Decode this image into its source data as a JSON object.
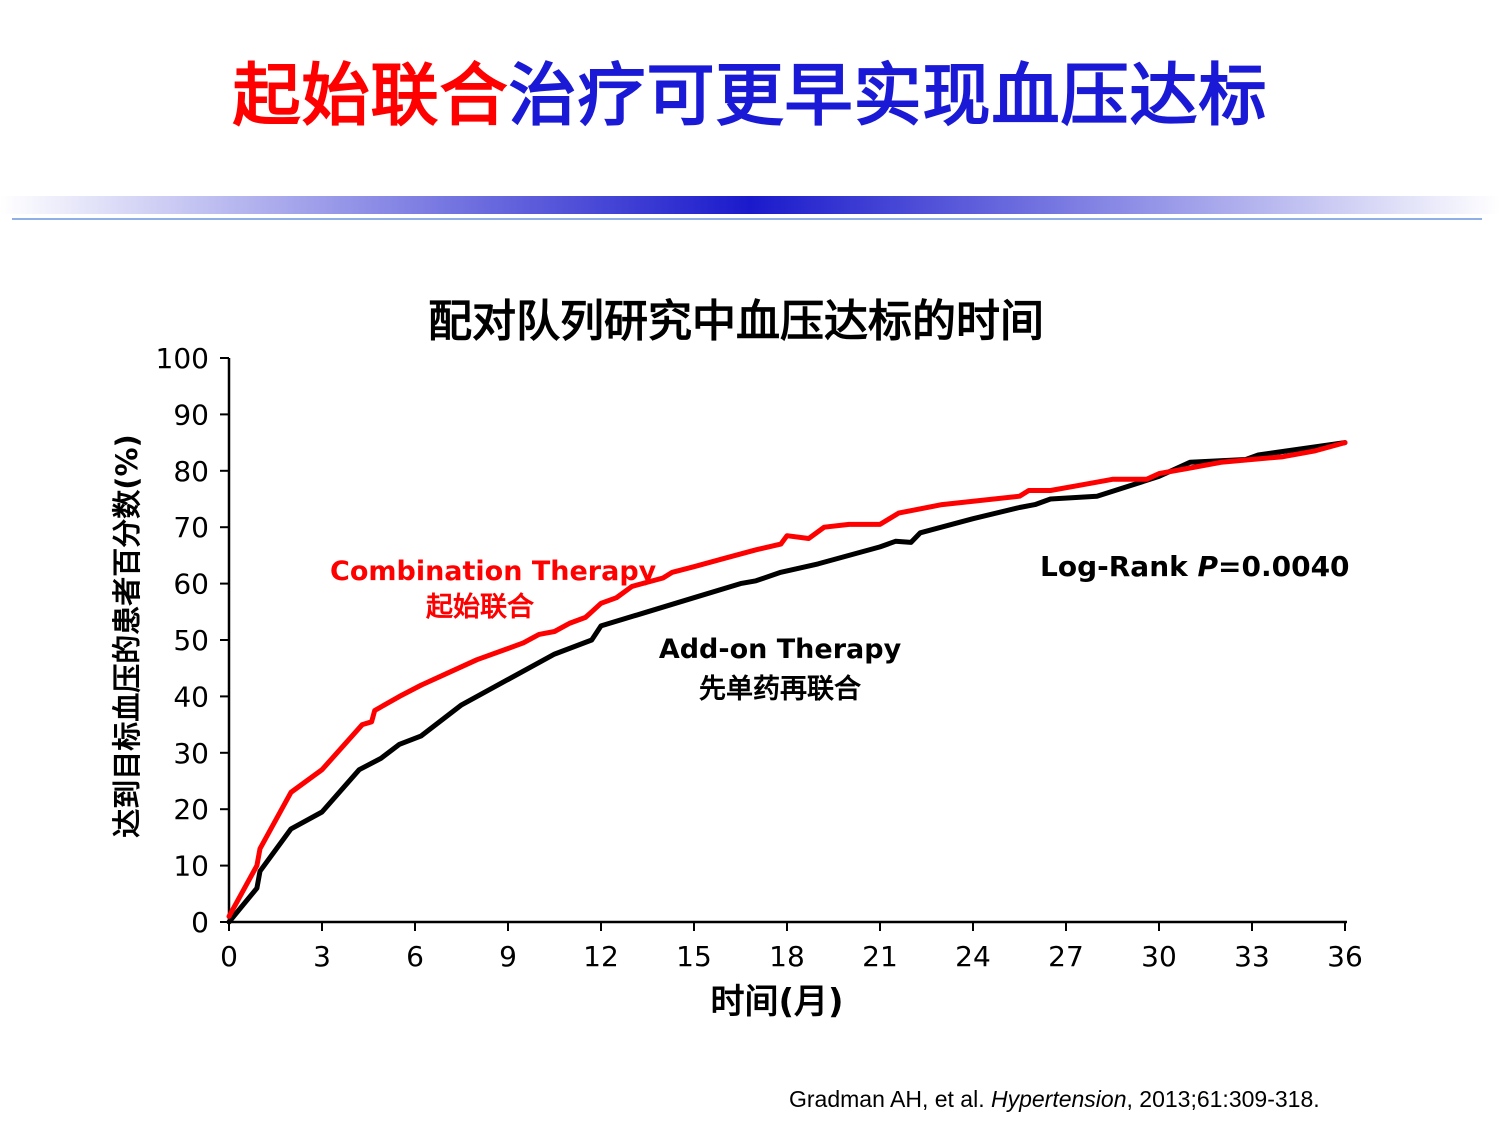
{
  "slide": {
    "title_part1": "起始联合",
    "title_part2": "治疗可更早实现血压达标"
  },
  "chart_data": {
    "type": "line",
    "title": "配对队列研究中血压达标的时间",
    "xlabel": "时间(月)",
    "ylabel": "达到目标血压的患者百分数(%)",
    "xlim": [
      0,
      36
    ],
    "ylim": [
      0,
      100
    ],
    "xticks": [
      "0",
      "3",
      "6",
      "9",
      "12",
      "15",
      "18",
      "21",
      "24",
      "27",
      "30",
      "33",
      "36"
    ],
    "yticks": [
      "0",
      "10",
      "20",
      "30",
      "40",
      "50",
      "60",
      "70",
      "80",
      "90",
      "100"
    ],
    "series": [
      {
        "name": "Add-on Therapy",
        "color": "#000000",
        "x": [
          0,
          0.9,
          1.0,
          2.0,
          3.0,
          4.2,
          4.9,
          5.5,
          6.2,
          7.5,
          9.0,
          10.5,
          11.7,
          12.0,
          13.5,
          15.0,
          16.5,
          17.0,
          17.8,
          19.0,
          21.0,
          21.5,
          22.0,
          22.3,
          24.0,
          25.5,
          26.0,
          26.5,
          28.0,
          30.0,
          31.0,
          32.8,
          33.2,
          36.0
        ],
        "y": [
          0,
          6,
          9,
          16.5,
          19.5,
          27,
          29,
          31.5,
          33,
          38.5,
          43,
          47.5,
          50,
          52.5,
          55,
          57.5,
          60,
          60.5,
          62,
          63.5,
          66.5,
          67.5,
          67.3,
          69,
          71.5,
          73.5,
          74,
          75,
          75.5,
          79,
          81.5,
          82,
          82.8,
          85
        ]
      },
      {
        "name": "Combination Therapy",
        "color": "#ff0000",
        "x": [
          0,
          0.9,
          1.0,
          1.7,
          2.0,
          3.0,
          4.3,
          4.6,
          4.7,
          5.5,
          6.2,
          7.0,
          8.0,
          9.0,
          9.5,
          10.0,
          10.5,
          11.0,
          11.5,
          11.7,
          12.0,
          12.5,
          13.0,
          14.0,
          14.3,
          15.0,
          16.0,
          17.0,
          17.8,
          18.0,
          18.7,
          19.2,
          20.0,
          21.0,
          21.6,
          23.0,
          25.5,
          25.8,
          26.5,
          27.5,
          28.5,
          29.6,
          30.0,
          31.0,
          32.0,
          34.0,
          35.0,
          36.0
        ],
        "y": [
          1,
          10,
          13,
          20,
          23,
          27,
          35,
          35.5,
          37.5,
          40,
          42,
          44,
          46.5,
          48.5,
          49.5,
          51,
          51.5,
          53,
          54,
          55,
          56.5,
          57.5,
          59.5,
          61,
          62,
          63,
          64.5,
          66,
          67,
          68.5,
          68,
          70,
          70.5,
          70.5,
          72.5,
          74,
          75.5,
          76.5,
          76.5,
          77.5,
          78.5,
          78.5,
          79.5,
          80.5,
          81.5,
          82.5,
          83.5,
          85
        ]
      }
    ],
    "annotations": {
      "combination_en": "Combination Therapy",
      "combination_zh": "起始联合",
      "addon_en": "Add-on Therapy",
      "addon_zh": "先单药再联合",
      "logrank_prefix": "Log-Rank ",
      "logrank_p": "P",
      "logrank_value": "=0.0040"
    }
  },
  "citation": {
    "authors": "Gradman AH, et al. ",
    "journal": "Hypertension",
    "rest": ", 2013;61:309-318."
  }
}
